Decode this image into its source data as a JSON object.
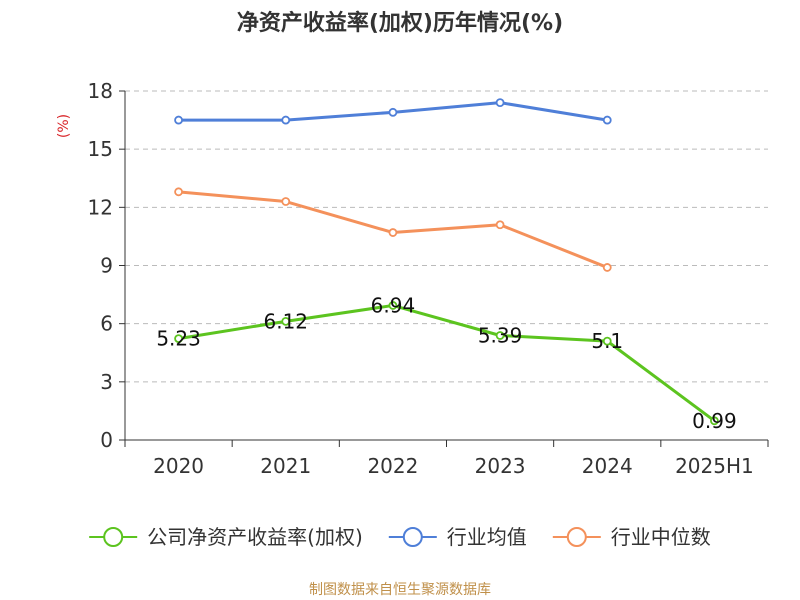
{
  "chart_data": {
    "type": "line",
    "title": "净资产收益率(加权)历年情况(%)",
    "ylabel": "(%)",
    "xlabel": "",
    "categories": [
      "2020",
      "2021",
      "2022",
      "2023",
      "2024",
      "2025H1"
    ],
    "ylim": [
      0,
      18
    ],
    "yticks": [
      "0",
      "3",
      "6",
      "9",
      "12",
      "15",
      "18"
    ],
    "grid": true,
    "legend_position": "bottom",
    "series": [
      {
        "name": "公司净资产收益率(加权)",
        "color": "#5cc41f",
        "values": [
          5.23,
          6.12,
          6.94,
          5.39,
          5.1,
          0.99
        ],
        "labels": [
          "5.23",
          "6.12",
          "6.94",
          "5.39",
          "5.1",
          "0.99"
        ]
      },
      {
        "name": "行业均值",
        "color": "#4f7fd8",
        "values": [
          16.5,
          16.5,
          16.9,
          17.4,
          16.5,
          null
        ]
      },
      {
        "name": "行业中位数",
        "color": "#f4915b",
        "values": [
          12.8,
          12.3,
          10.7,
          11.1,
          8.9,
          null
        ]
      }
    ]
  },
  "footer": {
    "source": "制图数据来自恒生聚源数据库"
  },
  "colors": {
    "unit_label": "#d9262a",
    "source_text": "#c0904a",
    "grid": "#bbbbbb",
    "axis": "#333333"
  }
}
